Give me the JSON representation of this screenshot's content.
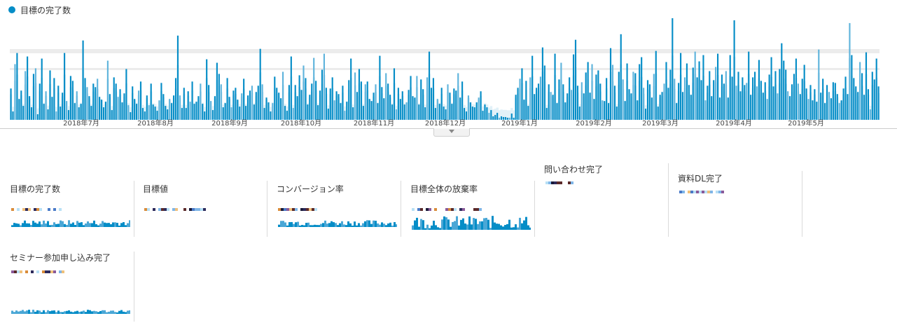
{
  "legend": {
    "label": "目標の完了数",
    "color": "#058dc7"
  },
  "chart_data": {
    "type": "bar",
    "series": [
      {
        "name": "目標の完了数",
        "values": []
      }
    ],
    "x_tick_labels": [
      "2018年7月",
      "2018年8月",
      "2018年9月",
      "2018年10月",
      "2018年11月",
      "2018年12月",
      "2019年1月",
      "2019年2月",
      "2019年3月",
      "2019年4月",
      "2019年5月"
    ],
    "values": [
      45,
      12,
      80,
      96,
      30,
      42,
      20,
      70,
      91,
      34,
      18,
      66,
      74,
      8,
      52,
      88,
      23,
      41,
      15,
      71,
      33,
      60,
      12,
      49,
      19,
      39,
      96,
      27,
      14,
      63,
      56,
      24,
      41,
      18,
      23,
      114,
      60,
      47,
      34,
      20,
      52,
      47,
      59,
      33,
      29,
      18,
      26,
      85,
      37,
      14,
      61,
      52,
      33,
      44,
      25,
      38,
      73,
      21,
      11,
      48,
      30,
      23,
      42,
      55,
      17,
      12,
      35,
      21,
      52,
      22,
      19,
      13,
      28,
      53,
      37,
      20,
      15,
      30,
      24,
      35,
      60,
      121,
      35,
      17,
      46,
      17,
      41,
      26,
      55,
      23,
      26,
      34,
      52,
      23,
      12,
      87,
      50,
      27,
      14,
      34,
      82,
      66,
      51,
      18,
      24,
      60,
      33,
      18,
      42,
      46,
      29,
      19,
      38,
      59,
      20,
      35,
      42,
      49,
      22,
      40,
      49,
      102,
      51,
      17,
      32,
      25,
      12,
      24,
      62,
      46,
      39,
      31,
      69,
      20,
      13,
      50,
      91,
      17,
      50,
      34,
      64,
      43,
      78,
      60,
      22,
      36,
      52,
      89,
      56,
      21,
      42,
      72,
      95,
      46,
      16,
      45,
      61,
      28,
      41,
      37,
      24,
      49,
      13,
      26,
      57,
      88,
      18,
      68,
      40,
      73,
      55,
      20,
      51,
      55,
      30,
      27,
      39,
      51,
      24,
      92,
      47,
      31,
      67,
      52,
      36,
      22,
      74,
      15,
      46,
      30,
      41,
      22,
      25,
      43,
      63,
      34,
      32,
      63,
      22,
      58,
      44,
      18,
      61,
      98,
      46,
      60,
      17,
      30,
      23,
      46,
      19,
      15,
      51,
      39,
      23,
      45,
      42,
      67,
      32,
      55,
      17,
      12,
      35,
      25,
      19,
      18,
      25,
      32,
      41,
      13,
      22,
      18,
      10,
      14,
      5,
      7,
      10,
      3,
      5,
      4,
      4,
      3,
      3,
      9,
      3,
      36,
      46,
      59,
      74,
      29,
      56,
      20,
      61,
      92,
      37,
      46,
      52,
      62,
      104,
      78,
      17,
      51,
      40,
      36,
      95,
      24,
      58,
      82,
      51,
      25,
      38,
      61,
      43,
      94,
      115,
      49,
      19,
      54,
      38,
      68,
      83,
      39,
      80,
      30,
      65,
      71,
      52,
      28,
      27,
      60,
      24,
      103,
      79,
      49,
      19,
      69,
      123,
      58,
      27,
      81,
      44,
      38,
      69,
      67,
      28,
      80,
      90,
      46,
      16,
      57,
      51,
      32,
      66,
      99,
      19,
      36,
      40,
      52,
      83,
      46,
      72,
      146,
      59,
      24,
      53,
      96,
      40,
      61,
      81,
      50,
      36,
      75,
      98,
      61,
      84,
      57,
      93,
      28,
      49,
      70,
      34,
      57,
      76,
      95,
      32,
      65,
      52,
      70,
      32,
      93,
      62,
      143,
      49,
      69,
      41,
      61,
      50,
      53,
      98,
      36,
      61,
      69,
      48,
      86,
      56,
      39,
      54,
      30,
      65,
      90,
      48,
      70,
      38,
      73,
      110,
      85,
      72,
      41,
      34,
      51,
      66,
      88,
      52,
      37,
      59,
      79,
      45,
      30,
      50,
      28,
      44,
      26,
      101,
      39,
      59,
      24,
      50,
      40,
      31,
      54,
      53,
      37,
      24,
      28,
      45,
      62,
      37,
      139,
      93,
      60,
      48,
      40,
      83,
      67,
      36,
      97,
      44,
      15,
      69,
      58,
      88,
      48
    ]
  },
  "metrics": [
    {
      "label": "目標の完了数"
    },
    {
      "label": "目標値"
    },
    {
      "label": "コンバージョン率"
    },
    {
      "label": "目標全体の放棄率"
    },
    {
      "label": "問い合わせ完了"
    },
    {
      "label": "資料DL完了"
    },
    {
      "label": "セミナー参加申し込み完了"
    }
  ]
}
